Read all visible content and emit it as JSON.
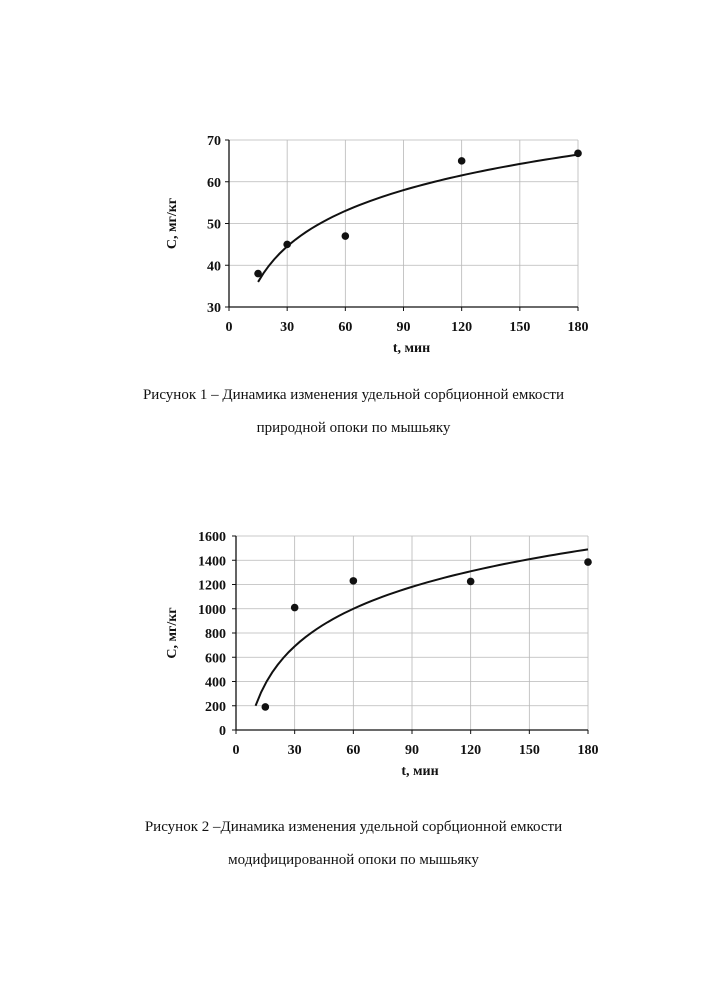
{
  "chart_data": [
    {
      "type": "scatter",
      "title": "",
      "xlabel": "t, мин",
      "ylabel": "С, мг/кг",
      "xlim": [
        0,
        180
      ],
      "ylim": [
        30,
        70
      ],
      "x_ticks": [
        "0",
        "30",
        "60",
        "90",
        "120",
        "150",
        "180"
      ],
      "y_ticks": [
        "30",
        "40",
        "50",
        "60",
        "70"
      ],
      "grid": true,
      "legend": "none",
      "points": {
        "x": [
          15,
          30,
          60,
          120,
          180
        ],
        "y": [
          38,
          45,
          47,
          65,
          66.8
        ]
      },
      "trendline": {
        "type": "logarithmic",
        "x_range": [
          15,
          180
        ],
        "y_range": [
          36,
          66.5
        ]
      },
      "caption": [
        "Рисунок 1 – Динамика изменения удельной сорбционной емкости",
        "природной опоки по мышьяку"
      ]
    },
    {
      "type": "scatter",
      "title": "",
      "xlabel": "t, мин",
      "ylabel": "С, мг/кг",
      "xlim": [
        0,
        180
      ],
      "ylim": [
        0,
        1600
      ],
      "x_ticks": [
        "0",
        "30",
        "60",
        "90",
        "120",
        "150",
        "180"
      ],
      "y_ticks": [
        "0",
        "200",
        "400",
        "600",
        "800",
        "1000",
        "1200",
        "1400",
        "1600"
      ],
      "grid": true,
      "legend": "none",
      "points": {
        "x": [
          15,
          30,
          60,
          120,
          180
        ],
        "y": [
          190,
          1010,
          1230,
          1225,
          1385
        ]
      },
      "trendline": {
        "type": "logarithmic",
        "x_range": [
          10,
          180
        ],
        "y_range": [
          200,
          1490
        ]
      },
      "caption": [
        "Рисунок 2 –Динамика изменения удельной сорбционной емкости",
        "модифицированной опоки по мышьяку"
      ]
    }
  ]
}
